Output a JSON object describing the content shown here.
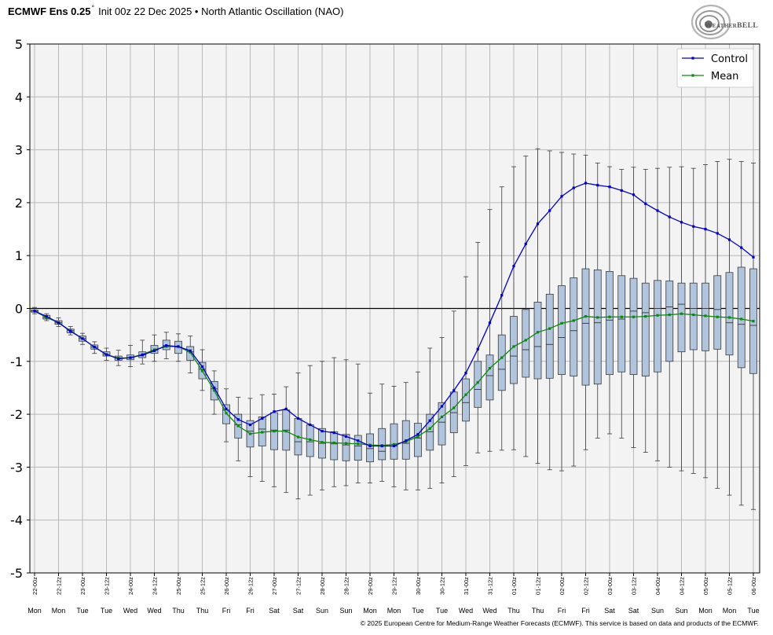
{
  "header": {
    "title_bold": "ECMWF Ens 0.25",
    "title_deg": "°",
    "title_rest": "Init 00z 22 Dec 2025 • North Atlantic Oscillation (NAO)"
  },
  "logo": {
    "text": "WeatherBELL"
  },
  "footer": "© 2025 European Centre for Medium-Range Weather Forecasts (ECMWF). This service is based on data and products of the ECMWF.",
  "colors": {
    "plot_background": "#f3f3f3",
    "grid": "#b8b8b8",
    "zero_line": "#000000",
    "control": "#0000cd",
    "mean": "#0a8a0a",
    "box_fill": "#b0c4de",
    "box_stroke": "#3a3a3a",
    "whisker": "#3a3a3a"
  },
  "chart_data": {
    "type": "line",
    "ylim": [
      -5,
      5
    ],
    "yticks": [
      5,
      4,
      3,
      2,
      1,
      0,
      -1,
      -2,
      -3,
      -4,
      -5
    ],
    "grid": true,
    "legend": {
      "placement": "top-right"
    },
    "x_tick_labels": [
      "22-00z",
      "22-12z",
      "23-00z",
      "23-12z",
      "24-00z",
      "24-12z",
      "25-00z",
      "25-12z",
      "26-00z",
      "26-12z",
      "27-00z",
      "27-12z",
      "28-00z",
      "28-12z",
      "29-00z",
      "29-12z",
      "30-00z",
      "30-12z",
      "31-00z",
      "31-12z",
      "01-00z",
      "01-12z",
      "02-00z",
      "02-12z",
      "03-00z",
      "03-12z",
      "04-00z",
      "04-12z",
      "05-00z",
      "05-12z",
      "06-00z"
    ],
    "x_day_labels": [
      "Mon",
      "Mon",
      "Tue",
      "Tue",
      "Wed",
      "Wed",
      "Thu",
      "Thu",
      "Fri",
      "Fri",
      "Sat",
      "Sat",
      "Sun",
      "Sun",
      "Mon",
      "Mon",
      "Tue",
      "Tue",
      "Wed",
      "Wed",
      "Thu",
      "Thu",
      "Fri",
      "Fri",
      "Sat",
      "Sat",
      "Sun",
      "Sun",
      "Mon",
      "Mon",
      "Tue"
    ],
    "series": [
      {
        "name": "Control",
        "values": [
          -0.05,
          -0.15,
          -0.27,
          -0.43,
          -0.57,
          -0.73,
          -0.87,
          -0.95,
          -0.93,
          -0.88,
          -0.8,
          -0.7,
          -0.72,
          -0.8,
          -1.1,
          -1.5,
          -1.9,
          -2.1,
          -2.2,
          -2.08,
          -1.95,
          -1.9,
          -2.08,
          -2.2,
          -2.32,
          -2.35,
          -2.42,
          -2.5,
          -2.6,
          -2.6,
          -2.6,
          -2.5,
          -2.38,
          -2.12,
          -1.85,
          -1.55,
          -1.22,
          -0.77,
          -0.27,
          0.25,
          0.8,
          1.22,
          1.6,
          1.85,
          2.12,
          2.28,
          2.37,
          2.33,
          2.3,
          2.23,
          2.15,
          1.98,
          1.85,
          1.73,
          1.63,
          1.55,
          1.5,
          1.42,
          1.3,
          1.15,
          0.97
        ]
      },
      {
        "name": "Mean",
        "values": [
          -0.05,
          -0.17,
          -0.27,
          -0.42,
          -0.57,
          -0.73,
          -0.87,
          -0.94,
          -0.93,
          -0.87,
          -0.78,
          -0.72,
          -0.72,
          -0.83,
          -1.18,
          -1.55,
          -1.98,
          -2.22,
          -2.37,
          -2.34,
          -2.32,
          -2.32,
          -2.43,
          -2.48,
          -2.53,
          -2.54,
          -2.55,
          -2.56,
          -2.58,
          -2.59,
          -2.57,
          -2.52,
          -2.42,
          -2.27,
          -2.05,
          -1.88,
          -1.63,
          -1.4,
          -1.13,
          -0.93,
          -0.72,
          -0.6,
          -0.45,
          -0.38,
          -0.28,
          -0.23,
          -0.15,
          -0.17,
          -0.16,
          -0.16,
          -0.16,
          -0.15,
          -0.13,
          -0.12,
          -0.1,
          -0.12,
          -0.14,
          -0.16,
          -0.17,
          -0.2,
          -0.24
        ]
      }
    ],
    "ensemble_boxes": [
      [
        -0.1,
        -0.07,
        -0.05,
        -0.03,
        0.02
      ],
      [
        -0.23,
        -0.2,
        -0.17,
        -0.13,
        -0.1
      ],
      [
        -0.34,
        -0.3,
        -0.27,
        -0.23,
        -0.18
      ],
      [
        -0.5,
        -0.46,
        -0.42,
        -0.39,
        -0.34
      ],
      [
        -0.68,
        -0.62,
        -0.57,
        -0.52,
        -0.47
      ],
      [
        -0.85,
        -0.77,
        -0.73,
        -0.69,
        -0.63
      ],
      [
        -0.98,
        -0.9,
        -0.87,
        -0.82,
        -0.75
      ],
      [
        -1.08,
        -0.98,
        -0.94,
        -0.9,
        -0.79
      ],
      [
        -1.1,
        -0.97,
        -0.93,
        -0.88,
        -0.7
      ],
      [
        -1.05,
        -0.93,
        -0.88,
        -0.82,
        -0.6
      ],
      [
        -1.0,
        -0.85,
        -0.79,
        -0.7,
        -0.5
      ],
      [
        -0.95,
        -0.78,
        -0.7,
        -0.6,
        -0.45
      ],
      [
        -1.0,
        -0.85,
        -0.73,
        -0.62,
        -0.48
      ],
      [
        -1.22,
        -0.98,
        -0.82,
        -0.72,
        -0.52
      ],
      [
        -1.55,
        -1.33,
        -1.15,
        -1.02,
        -0.78
      ],
      [
        -2.0,
        -1.73,
        -1.52,
        -1.38,
        -1.18
      ],
      [
        -2.52,
        -2.18,
        -1.92,
        -1.82,
        -1.52
      ],
      [
        -2.88,
        -2.45,
        -2.2,
        -2.0,
        -1.68
      ],
      [
        -3.18,
        -2.62,
        -2.32,
        -2.12,
        -1.7
      ],
      [
        -3.27,
        -2.6,
        -2.28,
        -2.05,
        -1.63
      ],
      [
        -3.37,
        -2.67,
        -2.3,
        -1.97,
        -1.62
      ],
      [
        -3.48,
        -2.68,
        -2.3,
        -1.92,
        -1.48
      ],
      [
        -3.6,
        -2.77,
        -2.52,
        -2.08,
        -1.22
      ],
      [
        -3.53,
        -2.8,
        -2.52,
        -2.2,
        -1.08
      ],
      [
        -3.43,
        -2.83,
        -2.55,
        -2.27,
        -1.0
      ],
      [
        -3.37,
        -2.86,
        -2.56,
        -2.33,
        -0.93
      ],
      [
        -3.35,
        -2.88,
        -2.58,
        -2.38,
        -0.97
      ],
      [
        -3.3,
        -2.87,
        -2.6,
        -2.4,
        -1.05
      ],
      [
        -3.3,
        -2.9,
        -2.65,
        -2.37,
        -1.6
      ],
      [
        -3.27,
        -2.86,
        -2.7,
        -2.27,
        -1.43
      ],
      [
        -3.37,
        -2.85,
        -2.6,
        -2.18,
        -1.47
      ],
      [
        -3.43,
        -2.85,
        -2.55,
        -2.12,
        -1.4
      ],
      [
        -3.43,
        -2.8,
        -2.45,
        -2.17,
        -1.2
      ],
      [
        -3.4,
        -2.68,
        -2.33,
        -2.0,
        -0.75
      ],
      [
        -3.3,
        -2.58,
        -2.15,
        -1.78,
        -0.55
      ],
      [
        -3.18,
        -2.35,
        -1.97,
        -1.58,
        -0.05
      ],
      [
        -2.97,
        -2.13,
        -1.78,
        -1.33,
        0.6
      ],
      [
        -2.73,
        -1.87,
        -1.53,
        -1.0,
        1.25
      ],
      [
        -2.7,
        -1.73,
        -1.27,
        -0.88,
        1.87
      ],
      [
        -2.68,
        -1.55,
        -1.15,
        -0.5,
        2.3
      ],
      [
        -2.67,
        -1.42,
        -0.9,
        -0.15,
        2.68
      ],
      [
        -2.8,
        -1.3,
        -0.78,
        -0.02,
        2.88
      ],
      [
        -2.93,
        -1.33,
        -0.72,
        0.12,
        3.02
      ],
      [
        -3.05,
        -1.32,
        -0.68,
        0.27,
        2.98
      ],
      [
        -3.07,
        -1.25,
        -0.55,
        0.43,
        2.95
      ],
      [
        -2.98,
        -1.28,
        -0.42,
        0.58,
        2.92
      ],
      [
        -2.67,
        -1.45,
        -0.28,
        0.75,
        2.9
      ],
      [
        -2.45,
        -1.43,
        -0.27,
        0.73,
        2.75
      ],
      [
        -2.37,
        -1.25,
        -0.22,
        0.7,
        2.68
      ],
      [
        -2.45,
        -1.2,
        -0.2,
        0.62,
        2.63
      ],
      [
        -2.63,
        -1.25,
        -0.05,
        0.57,
        2.67
      ],
      [
        -2.72,
        -1.28,
        -0.08,
        0.48,
        2.63
      ],
      [
        -2.88,
        -1.2,
        0.0,
        0.53,
        2.65
      ],
      [
        -3.0,
        -1.0,
        0.03,
        0.52,
        2.67
      ],
      [
        -3.07,
        -0.82,
        0.08,
        0.48,
        2.68
      ],
      [
        -3.12,
        -0.78,
        0.0,
        0.48,
        2.65
      ],
      [
        -3.2,
        -0.8,
        0.0,
        0.48,
        2.72
      ],
      [
        -3.4,
        -0.77,
        -0.02,
        0.62,
        2.78
      ],
      [
        -3.53,
        -0.88,
        -0.27,
        0.68,
        2.82
      ],
      [
        -3.72,
        -1.12,
        -0.3,
        0.78,
        2.78
      ],
      [
        -3.8,
        -1.23,
        -0.32,
        0.75,
        2.75
      ]
    ]
  }
}
